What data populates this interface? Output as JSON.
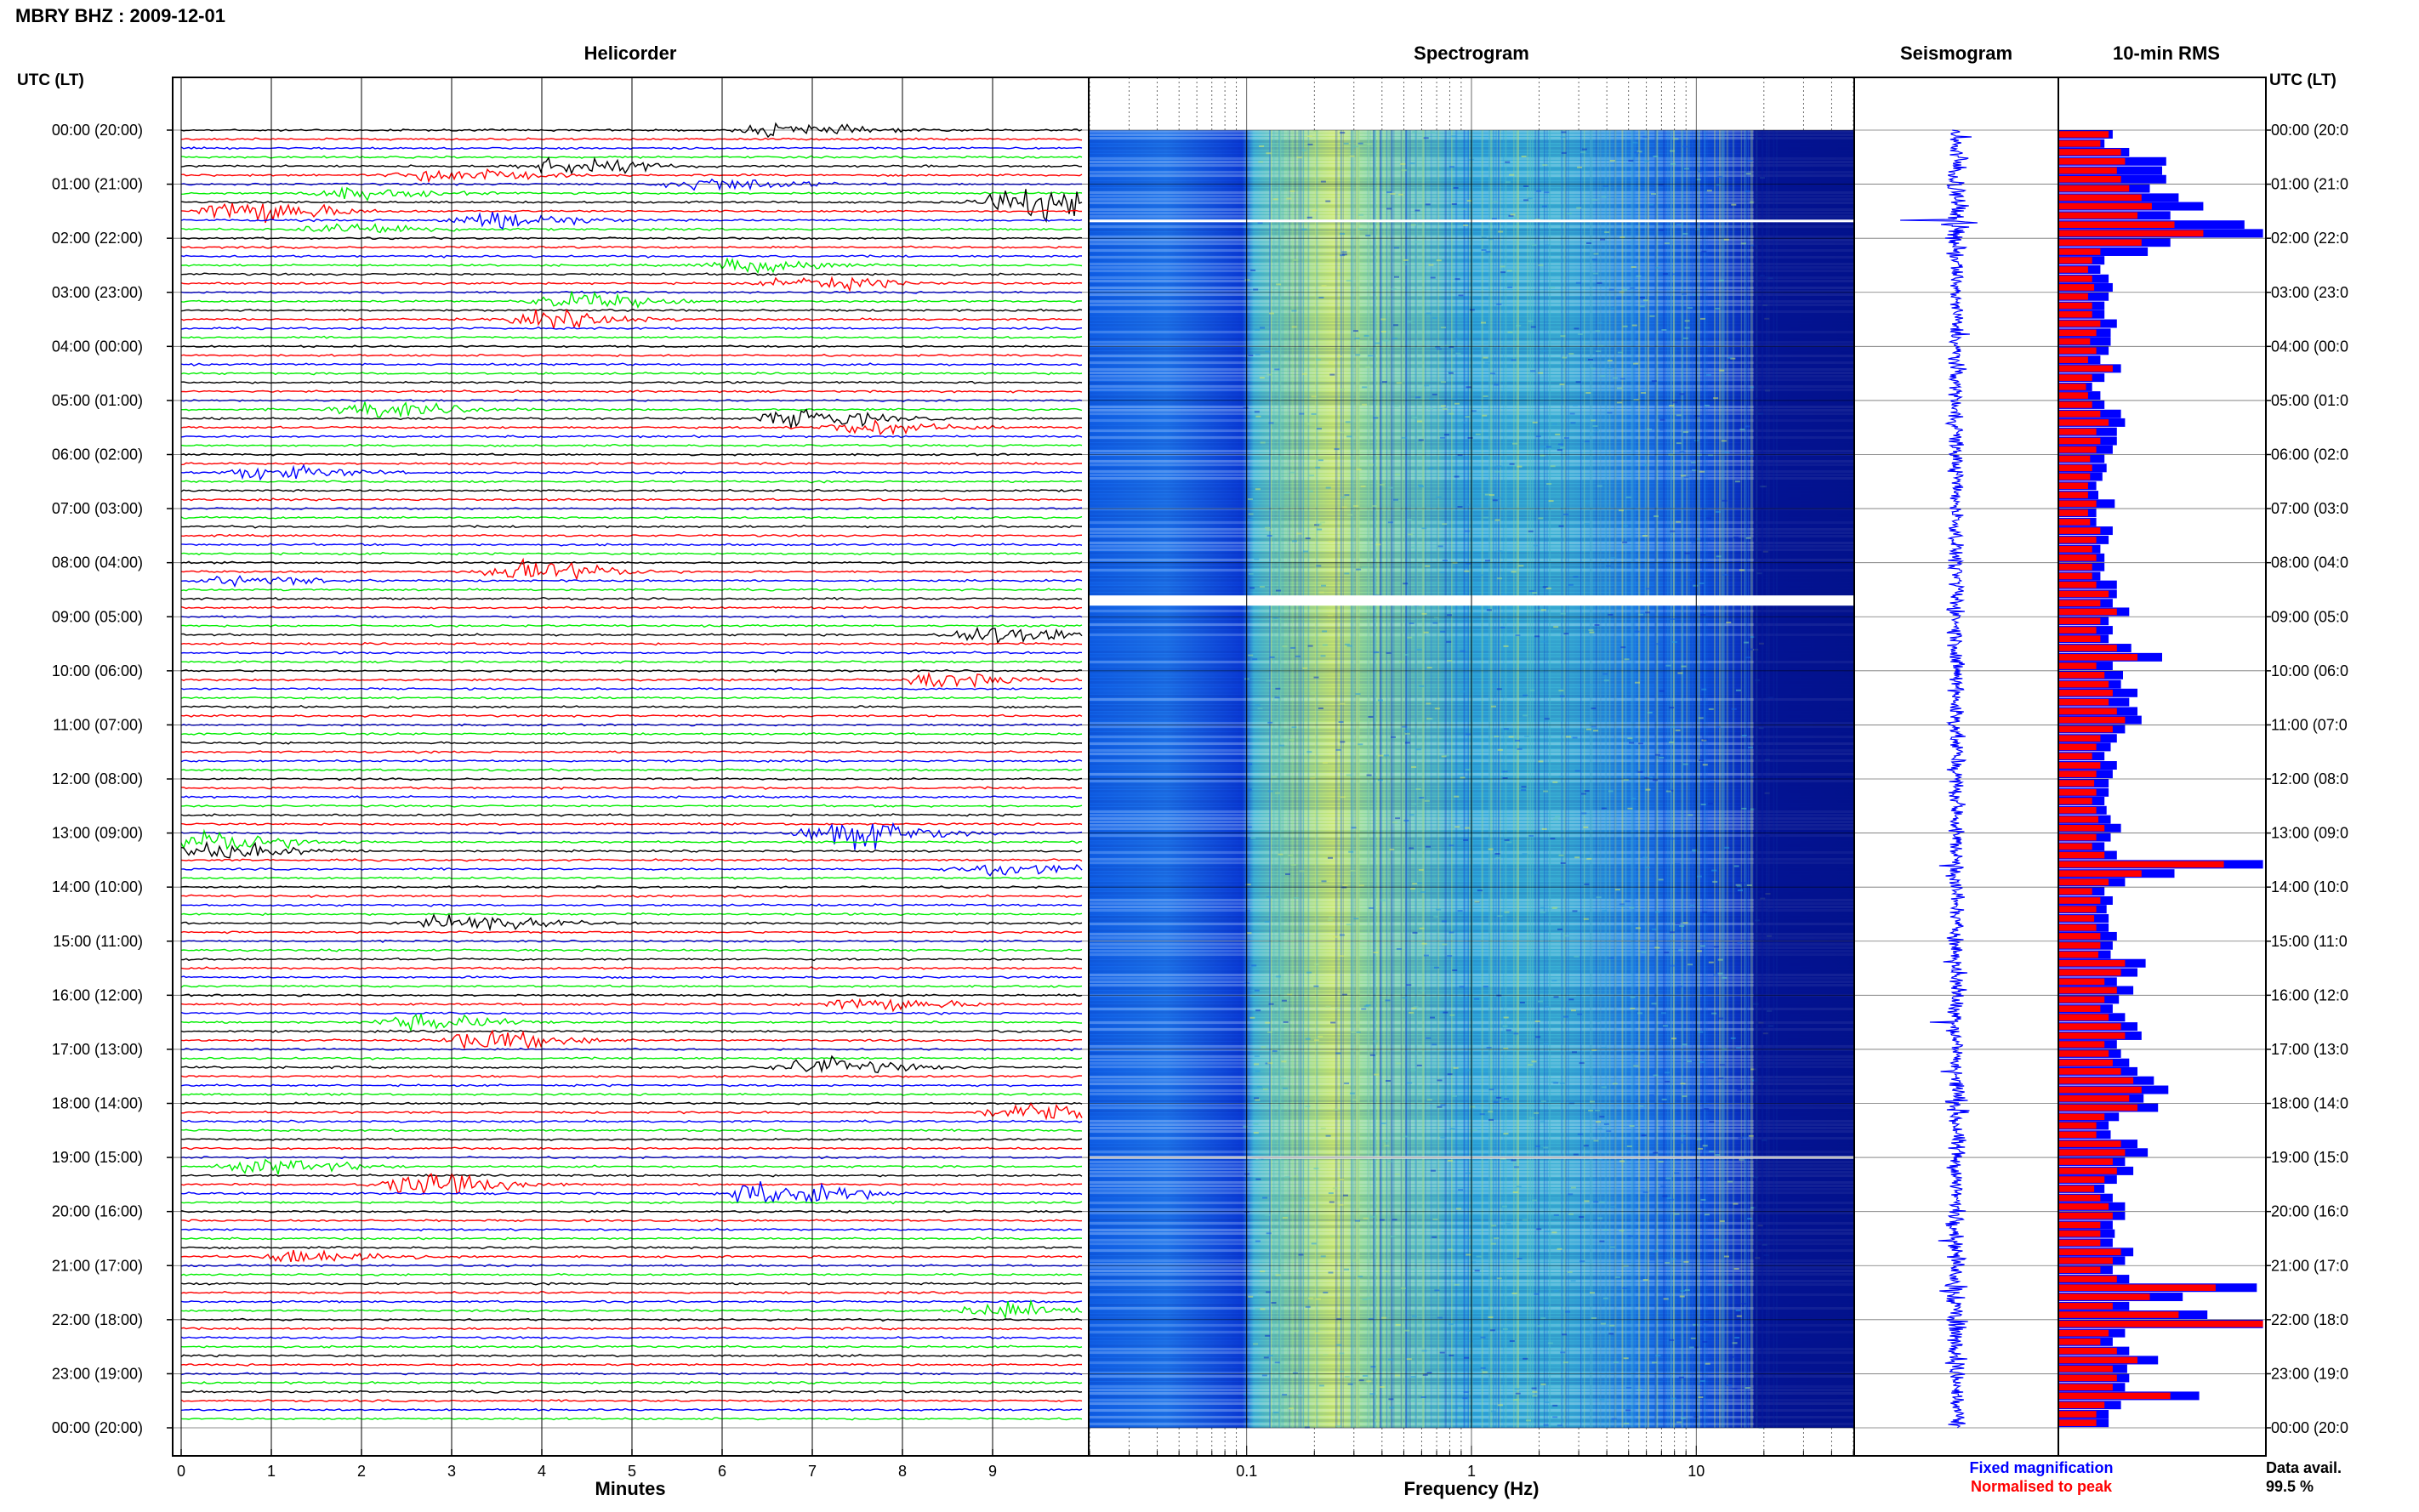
{
  "figure_title": "MBRY BHZ : 2009-12-01",
  "panel_titles": {
    "helicorder": "Helicorder",
    "spectrogram": "Spectrogram",
    "seismogram": "Seismogram",
    "rms": "10-min RMS"
  },
  "left_axis_label": "UTC (LT)",
  "right_axis_label": "UTC (LT)",
  "hour_labels": [
    "00:00 (20:00)",
    "01:00 (21:00)",
    "02:00 (22:00)",
    "03:00 (23:00)",
    "04:00 (00:00)",
    "05:00 (01:00)",
    "06:00 (02:00)",
    "07:00 (03:00)",
    "08:00 (04:00)",
    "09:00 (05:00)",
    "10:00 (06:00)",
    "11:00 (07:00)",
    "12:00 (08:00)",
    "13:00 (09:00)",
    "14:00 (10:00)",
    "15:00 (11:00)",
    "16:00 (12:00)",
    "17:00 (13:00)",
    "18:00 (14:00)",
    "19:00 (15:00)",
    "20:00 (16:00)",
    "21:00 (17:00)",
    "22:00 (18:00)",
    "23:00 (19:00)",
    "00:00 (20:00)"
  ],
  "right_hour_labels": [
    "00:00 (20:0",
    "01:00 (21:0",
    "02:00 (22:0",
    "03:00 (23:0",
    "04:00 (00:0",
    "05:00 (01:0",
    "06:00 (02:0",
    "07:00 (03:0",
    "08:00 (04:0",
    "09:00 (05:0",
    "10:00 (06:0",
    "11:00 (07:0",
    "12:00 (08:0",
    "13:00 (09:0",
    "14:00 (10:0",
    "15:00 (11:0",
    "16:00 (12:0",
    "17:00 (13:0",
    "18:00 (14:0",
    "19:00 (15:0",
    "20:00 (16:0",
    "21:00 (17:0",
    "22:00 (18:0",
    "23:00 (19:0",
    "00:00 (20:0"
  ],
  "helicorder": {
    "xlabel": "Minutes",
    "xticks": [
      "0",
      "1",
      "2",
      "3",
      "4",
      "5",
      "6",
      "7",
      "8",
      "9"
    ],
    "xlim": [
      0,
      10
    ],
    "trace_colors": [
      "#000000",
      "#ff0000",
      "#0000ff",
      "#00ee00"
    ],
    "traces_per_hour": 6,
    "trace_length_minutes": 10,
    "events": [
      {
        "row": 0,
        "minute": 6.6,
        "amp": 0.7
      },
      {
        "row": 4,
        "minute": 4.2,
        "amp": 1.0
      },
      {
        "row": 5,
        "minute": 2.8,
        "amp": 0.9
      },
      {
        "row": 6,
        "minute": 5.8,
        "amp": 0.8
      },
      {
        "row": 7,
        "minute": 1.8,
        "amp": 0.6
      },
      {
        "row": 8,
        "minute": 9.3,
        "amp": 2.0
      },
      {
        "row": 9,
        "minute": 0.6,
        "amp": 1.6
      },
      {
        "row": 10,
        "minute": 3.4,
        "amp": 1.0
      },
      {
        "row": 11,
        "minute": 1.8,
        "amp": 0.7
      },
      {
        "row": 15,
        "minute": 6.2,
        "amp": 0.8
      },
      {
        "row": 17,
        "minute": 6.9,
        "amp": 0.8
      },
      {
        "row": 19,
        "minute": 4.3,
        "amp": 0.9
      },
      {
        "row": 21,
        "minute": 4.0,
        "amp": 0.9
      },
      {
        "row": 31,
        "minute": 2.1,
        "amp": 0.9
      },
      {
        "row": 32,
        "minute": 6.8,
        "amp": 1.1
      },
      {
        "row": 33,
        "minute": 7.5,
        "amp": 0.8
      },
      {
        "row": 38,
        "minute": 0.9,
        "amp": 0.8
      },
      {
        "row": 49,
        "minute": 3.8,
        "amp": 1.2
      },
      {
        "row": 50,
        "minute": 0.6,
        "amp": 0.5
      },
      {
        "row": 56,
        "minute": 8.9,
        "amp": 1.1
      },
      {
        "row": 61,
        "minute": 8.4,
        "amp": 0.8
      },
      {
        "row": 78,
        "minute": 7.3,
        "amp": 1.8
      },
      {
        "row": 79,
        "minute": 0.3,
        "amp": 1.2
      },
      {
        "row": 80,
        "minute": 0.3,
        "amp": 0.9
      },
      {
        "row": 82,
        "minute": 9.0,
        "amp": 0.8
      },
      {
        "row": 88,
        "minute": 3.0,
        "amp": 1.0
      },
      {
        "row": 97,
        "minute": 7.5,
        "amp": 0.9
      },
      {
        "row": 99,
        "minute": 2.6,
        "amp": 0.9
      },
      {
        "row": 101,
        "minute": 3.3,
        "amp": 1.1
      },
      {
        "row": 104,
        "minute": 7.0,
        "amp": 1.0
      },
      {
        "row": 109,
        "minute": 9.3,
        "amp": 1.0
      },
      {
        "row": 115,
        "minute": 0.9,
        "amp": 0.8
      },
      {
        "row": 117,
        "minute": 2.6,
        "amp": 1.3
      },
      {
        "row": 118,
        "minute": 6.5,
        "amp": 1.7
      },
      {
        "row": 125,
        "minute": 1.3,
        "amp": 0.9
      },
      {
        "row": 131,
        "minute": 9.0,
        "amp": 1.0
      }
    ]
  },
  "spectrogram": {
    "xlabel": "Frequency (Hz)",
    "xscale": "log",
    "xlim": [
      0.02,
      50
    ],
    "xticks": [
      0.1,
      1,
      10
    ],
    "xtick_labels": [
      "0.1",
      "1",
      "10"
    ],
    "gap_hours": [
      1.68,
      8.7,
      19.0
    ]
  },
  "seismogram": {
    "panel": "Seismogram"
  },
  "chart_data": {
    "type": "bar",
    "title": "10-min RMS",
    "orientation": "horizontal",
    "categories_hours_utc": [
      0.0,
      0.17,
      0.33,
      0.5,
      0.67,
      0.83,
      1.0,
      1.17,
      1.33,
      1.5,
      1.67,
      1.83,
      2.0,
      2.17,
      2.33,
      2.5,
      2.67,
      2.83,
      3.0,
      3.17,
      3.33,
      3.5,
      3.67,
      3.83,
      4.0,
      4.17,
      4.33,
      4.5,
      4.67,
      4.83,
      5.0,
      5.17,
      5.33,
      5.5,
      5.67,
      5.83,
      6.0,
      6.17,
      6.33,
      6.5,
      6.67,
      6.83,
      7.0,
      7.17,
      7.33,
      7.5,
      7.67,
      7.83,
      8.0,
      8.17,
      8.33,
      8.5,
      8.67,
      8.83,
      9.0,
      9.17,
      9.33,
      9.5,
      9.67,
      9.83,
      10.0,
      10.17,
      10.33,
      10.5,
      10.67,
      10.83,
      11.0,
      11.17,
      11.33,
      11.5,
      11.67,
      11.83,
      12.0,
      12.17,
      12.33,
      12.5,
      12.67,
      12.83,
      13.0,
      13.17,
      13.33,
      13.5,
      13.67,
      13.83,
      14.0,
      14.17,
      14.33,
      14.5,
      14.67,
      14.83,
      15.0,
      15.17,
      15.33,
      15.5,
      15.67,
      15.83,
      16.0,
      16.17,
      16.33,
      16.5,
      16.67,
      16.83,
      17.0,
      17.17,
      17.33,
      17.5,
      17.67,
      17.83,
      18.0,
      18.17,
      18.33,
      18.5,
      18.67,
      18.83,
      19.0,
      19.17,
      19.33,
      19.5,
      19.67,
      19.83,
      20.0,
      20.17,
      20.33,
      20.5,
      20.67,
      20.83,
      21.0,
      21.17,
      21.33,
      21.5,
      21.67,
      21.83,
      22.0,
      22.17,
      22.33,
      22.5,
      22.67,
      22.83,
      23.0,
      23.17,
      23.33,
      23.5,
      23.67,
      23.83
    ],
    "series": [
      {
        "name": "Fixed magnification",
        "color": "#0000ff",
        "values": [
          0.26,
          0.22,
          0.34,
          0.52,
          0.5,
          0.52,
          0.44,
          0.58,
          0.7,
          0.54,
          0.9,
          0.99,
          0.54,
          0.43,
          0.22,
          0.2,
          0.24,
          0.26,
          0.24,
          0.22,
          0.22,
          0.28,
          0.25,
          0.25,
          0.24,
          0.2,
          0.3,
          0.22,
          0.16,
          0.2,
          0.22,
          0.3,
          0.32,
          0.28,
          0.28,
          0.26,
          0.22,
          0.23,
          0.21,
          0.18,
          0.19,
          0.27,
          0.18,
          0.18,
          0.26,
          0.24,
          0.2,
          0.22,
          0.22,
          0.2,
          0.28,
          0.28,
          0.26,
          0.34,
          0.24,
          0.26,
          0.24,
          0.35,
          0.5,
          0.26,
          0.31,
          0.3,
          0.38,
          0.34,
          0.38,
          0.4,
          0.32,
          0.28,
          0.25,
          0.22,
          0.28,
          0.26,
          0.24,
          0.24,
          0.22,
          0.23,
          0.25,
          0.3,
          0.25,
          0.22,
          0.28,
          0.99,
          0.56,
          0.32,
          0.22,
          0.26,
          0.23,
          0.24,
          0.24,
          0.28,
          0.26,
          0.25,
          0.42,
          0.38,
          0.28,
          0.36,
          0.29,
          0.26,
          0.32,
          0.38,
          0.4,
          0.28,
          0.3,
          0.34,
          0.38,
          0.46,
          0.53,
          0.41,
          0.48,
          0.29,
          0.24,
          0.25,
          0.38,
          0.43,
          0.32,
          0.36,
          0.28,
          0.22,
          0.26,
          0.32,
          0.32,
          0.26,
          0.27,
          0.26,
          0.36,
          0.32,
          0.26,
          0.34,
          0.96,
          0.6,
          0.34,
          0.72,
          0.99,
          0.32,
          0.26,
          0.34,
          0.48,
          0.33,
          0.34,
          0.32,
          0.68,
          0.3,
          0.24,
          0.24
        ]
      },
      {
        "name": "Normalised to peak",
        "color": "#ff0000",
        "values": [
          0.24,
          0.2,
          0.3,
          0.32,
          0.28,
          0.3,
          0.34,
          0.4,
          0.45,
          0.38,
          0.56,
          0.7,
          0.4,
          0.2,
          0.16,
          0.14,
          0.16,
          0.17,
          0.14,
          0.16,
          0.16,
          0.2,
          0.18,
          0.15,
          0.18,
          0.14,
          0.26,
          0.16,
          0.13,
          0.14,
          0.16,
          0.2,
          0.24,
          0.18,
          0.2,
          0.18,
          0.15,
          0.16,
          0.15,
          0.14,
          0.14,
          0.18,
          0.14,
          0.15,
          0.2,
          0.18,
          0.16,
          0.18,
          0.16,
          0.16,
          0.18,
          0.24,
          0.2,
          0.28,
          0.2,
          0.18,
          0.2,
          0.28,
          0.38,
          0.18,
          0.22,
          0.24,
          0.26,
          0.24,
          0.28,
          0.32,
          0.26,
          0.2,
          0.18,
          0.16,
          0.2,
          0.18,
          0.17,
          0.18,
          0.16,
          0.18,
          0.19,
          0.22,
          0.18,
          0.16,
          0.22,
          0.8,
          0.4,
          0.24,
          0.16,
          0.2,
          0.18,
          0.17,
          0.18,
          0.2,
          0.2,
          0.19,
          0.32,
          0.3,
          0.22,
          0.28,
          0.22,
          0.2,
          0.24,
          0.3,
          0.32,
          0.22,
          0.24,
          0.26,
          0.3,
          0.36,
          0.4,
          0.34,
          0.38,
          0.22,
          0.18,
          0.18,
          0.3,
          0.32,
          0.26,
          0.28,
          0.22,
          0.17,
          0.2,
          0.24,
          0.26,
          0.2,
          0.2,
          0.2,
          0.3,
          0.26,
          0.2,
          0.28,
          0.76,
          0.44,
          0.26,
          0.58,
          0.99,
          0.24,
          0.2,
          0.28,
          0.38,
          0.26,
          0.28,
          0.26,
          0.54,
          0.22,
          0.18,
          0.18
        ]
      }
    ],
    "xlim": [
      0,
      1
    ],
    "ylim_hours": [
      0,
      24
    ],
    "legend": "bottom-right"
  },
  "data_availability": {
    "label": "Data avail.",
    "value": "99.5 %"
  }
}
